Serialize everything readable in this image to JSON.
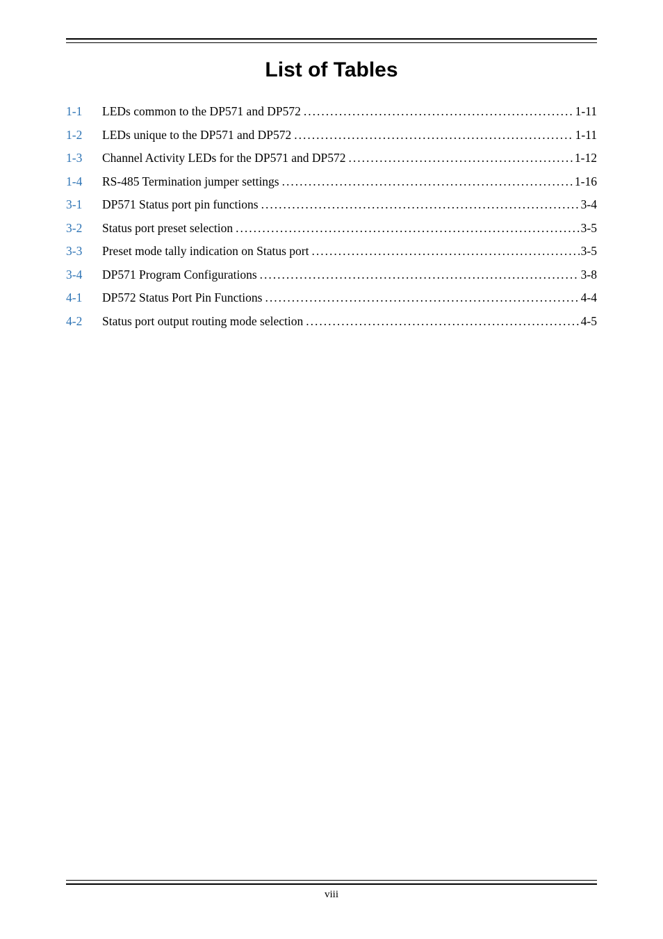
{
  "title": "List of Tables",
  "page_number_label": "viii",
  "link_color": "#2e74b5",
  "text_color": "#000000",
  "entries": [
    {
      "num": "1-1",
      "text": "LEDs common to the DP571 and DP572  ",
      "page": " 1-11"
    },
    {
      "num": "1-2",
      "text": "LEDs unique to the DP571 and DP572  ",
      "page": " 1-11"
    },
    {
      "num": "1-3",
      "text": "Channel Activity LEDs for the DP571 and DP572  ",
      "page": " 1-12"
    },
    {
      "num": "1-4",
      "text": "RS-485 Termination jumper settings  ",
      "page": " 1-16"
    },
    {
      "num": "3-1",
      "text": "DP571 Status port pin functions  ",
      "page": " 3-4"
    },
    {
      "num": "3-2",
      "text": "Status port preset selection  ",
      "page": " 3-5"
    },
    {
      "num": "3-3",
      "text": "Preset mode tally indication on Status port  ",
      "page": " 3-5"
    },
    {
      "num": "3-4",
      "text": "DP571 Program Configurations  ",
      "page": " 3-8"
    },
    {
      "num": "4-1",
      "text": "DP572 Status Port Pin Functions  ",
      "page": " 4-4"
    },
    {
      "num": "4-2",
      "text": "Status port output routing mode selection  ",
      "page": " 4-5"
    }
  ]
}
